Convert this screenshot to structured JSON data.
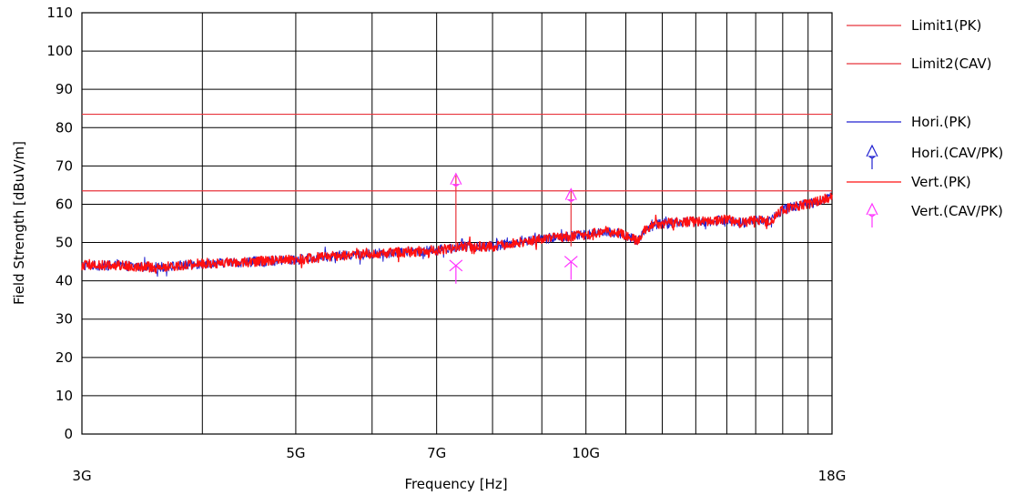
{
  "chart_data": {
    "type": "line",
    "xlabel": "Frequency [Hz]",
    "ylabel": "Field Strength [dBuV/m]",
    "x_scale": "log",
    "xlim": [
      3000000000,
      18000000000
    ],
    "ylim": [
      0,
      110
    ],
    "grid": true,
    "legend_position": "right",
    "y_ticks": [
      0,
      10,
      20,
      30,
      40,
      50,
      60,
      70,
      80,
      90,
      100,
      110
    ],
    "x_tick_labels": [
      {
        "value": 3000000000,
        "label": "3G"
      },
      {
        "value": 5000000000,
        "label": "5G"
      },
      {
        "value": 7000000000,
        "label": "7G"
      },
      {
        "value": 10000000000,
        "label": "10G"
      },
      {
        "value": 18000000000,
        "label": "18G"
      }
    ],
    "x_gridlines": [
      4000000000,
      5000000000,
      6000000000,
      7000000000,
      8000000000,
      9000000000,
      10000000000,
      11000000000,
      12000000000,
      13000000000,
      14000000000,
      15000000000,
      16000000000,
      17000000000,
      18000000000
    ],
    "limits": [
      {
        "name": "Limit1(PK)",
        "value": 83.5,
        "color": "#e8343c"
      },
      {
        "name": "Limit2(CAV)",
        "value": 63.5,
        "color": "#e8343c"
      }
    ],
    "series": [
      {
        "name": "Hori.(PK)",
        "color": "#2020d0",
        "x": [
          3000000000,
          3300000000,
          3600000000,
          4000000000,
          4500000000,
          5000000000,
          5500000000,
          6000000000,
          6500000000,
          7000000000,
          7500000000,
          8000000000,
          8500000000,
          9000000000,
          9500000000,
          10000000000,
          10500000000,
          11000000000,
          11300000000,
          11600000000,
          12000000000,
          13000000000,
          13500000000,
          14000000000,
          14500000000,
          15000000000,
          15500000000,
          16000000000,
          16500000000,
          17000000000,
          17500000000,
          18000000000
        ],
        "values": [
          44,
          44,
          43.5,
          44.5,
          45,
          45.5,
          46.5,
          47,
          47.5,
          48,
          49,
          49,
          50,
          51,
          51.5,
          52,
          53,
          52,
          50.5,
          54,
          55,
          55.5,
          55.5,
          56,
          55,
          56,
          55.5,
          58.5,
          59.5,
          60,
          61,
          62
        ]
      },
      {
        "name": "Vert.(PK)",
        "color": "#ff1010",
        "x": [
          3000000000,
          3300000000,
          3600000000,
          4000000000,
          4500000000,
          5000000000,
          5500000000,
          6000000000,
          6500000000,
          7000000000,
          7500000000,
          8000000000,
          8500000000,
          9000000000,
          9500000000,
          10000000000,
          10500000000,
          11000000000,
          11300000000,
          11600000000,
          12000000000,
          13000000000,
          13500000000,
          14000000000,
          14500000000,
          15000000000,
          15500000000,
          16000000000,
          16500000000,
          17000000000,
          17500000000,
          18000000000
        ],
        "values": [
          44,
          44,
          43.5,
          44.5,
          45,
          45.5,
          46.5,
          47,
          47.5,
          48,
          49,
          49,
          50,
          51,
          51.5,
          52,
          53,
          52,
          50.5,
          54,
          55,
          55.5,
          55.5,
          56,
          55,
          56,
          55.5,
          58.5,
          59.5,
          60,
          61,
          62
        ]
      }
    ],
    "markers": [
      {
        "name": "Hori.(CAV/PK)",
        "color": "#2020d0",
        "points": []
      },
      {
        "name": "Vert.(CAV/PK)",
        "color": "#ff33ff",
        "points": [
          {
            "x": 7330000000,
            "pk": 68,
            "cav": 44
          },
          {
            "x": 9650000000,
            "pk": 64,
            "cav": 45
          }
        ]
      }
    ]
  }
}
